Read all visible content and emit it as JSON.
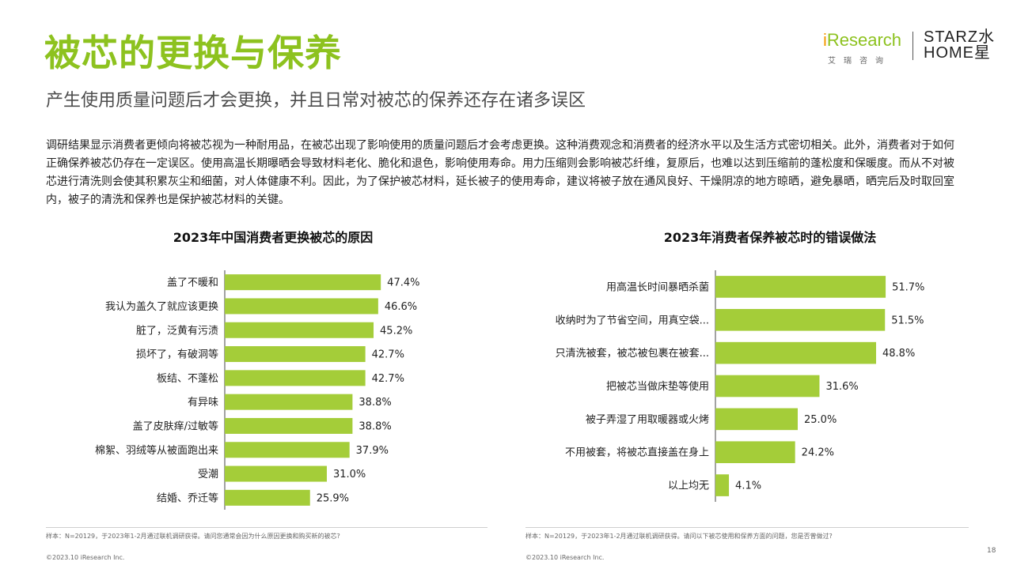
{
  "header": {
    "title": "被芯的更换与保养",
    "subtitle": "产生使用质量问题后才会更换，并且日常对被芯的保养还存在诸多误区"
  },
  "logo": {
    "iresearch_prefix": "i",
    "iresearch_main": "Research",
    "iresearch_sub": "艾瑞咨询",
    "partner_line1": "STARZ水",
    "partner_line2": "HOME星"
  },
  "body_text": "调研结果显示消费者更倾向将被芯视为一种耐用品，在被芯出现了影响使用的质量问题后才会考虑更换。这种消费观念和消费者的经济水平以及生活方式密切相关。此外，消费者对于如何正确保养被芯仍存在一定误区。使用高温长期曝晒会导致材料老化、脆化和退色，影响使用寿命。用力压缩则会影响被芯纤维，复原后，也难以达到压缩前的蓬松度和保暖度。而从不对被芯进行清洗则会使其积累灰尘和细菌，对人体健康不利。因此，为了保护被芯材料，延长被子的使用寿命，建议将被子放在通风良好、干燥阴凉的地方晾晒，避免暴晒，晒完后及时取回室内，被子的清洗和保养也是保护被芯材料的关键。",
  "colors": {
    "accent": "#8dc21f",
    "bar": "#a4cd39",
    "axis": "#444444"
  },
  "chart_data": [
    {
      "type": "bar",
      "orientation": "horizontal",
      "title": "2023年中国消费者更换被芯的原因",
      "categories": [
        "盖了不暖和",
        "我认为盖久了就应该更换",
        "脏了，泛黄有污渍",
        "损坏了，有破洞等",
        "板结、不蓬松",
        "有异味",
        "盖了皮肤痒/过敏等",
        "棉絮、羽绒等从被面跑出来",
        "受潮",
        "结婚、乔迁等"
      ],
      "values": [
        47.4,
        46.6,
        45.2,
        42.7,
        42.7,
        38.8,
        38.8,
        37.9,
        31.0,
        25.9
      ],
      "value_labels": [
        "47.4%",
        "46.6%",
        "45.2%",
        "42.7%",
        "42.7%",
        "38.8%",
        "38.8%",
        "37.9%",
        "31.0%",
        "25.9%"
      ],
      "unit": "%",
      "xlim": [
        0,
        100
      ]
    },
    {
      "type": "bar",
      "orientation": "horizontal",
      "title": "2023年消费者保养被芯时的错误做法",
      "categories": [
        "用高温长时间暴晒杀菌",
        "收纳时为了节省空间，用真空袋...",
        "只清洗被套，被芯被包裹在被套...",
        "把被芯当做床垫等使用",
        "被子弄湿了用取暖器或火烤",
        "不用被套，将被芯直接盖在身上",
        "以上均无"
      ],
      "values": [
        51.7,
        51.5,
        48.8,
        31.6,
        25.0,
        24.2,
        4.1
      ],
      "value_labels": [
        "51.7%",
        "51.5%",
        "48.8%",
        "31.6%",
        "25.0%",
        "24.2%",
        "4.1%"
      ],
      "unit": "%",
      "xlim": [
        0,
        100
      ]
    }
  ],
  "footnotes": {
    "left_sample": "样本：N=20129，于2023年1-2月通过联机调研获得。请问您通常会因为什么原因更换和购买新的被芯?",
    "right_sample": "样本：N=20129，于2023年1-2月通过联机调研获得。请问以下被芯使用和保养方面的问题，您是否曾做过?",
    "copyright_left": "©2023.10 iResearch Inc.",
    "copyright_right": "©2023.10 iResearch Inc.",
    "page_number": "18"
  }
}
